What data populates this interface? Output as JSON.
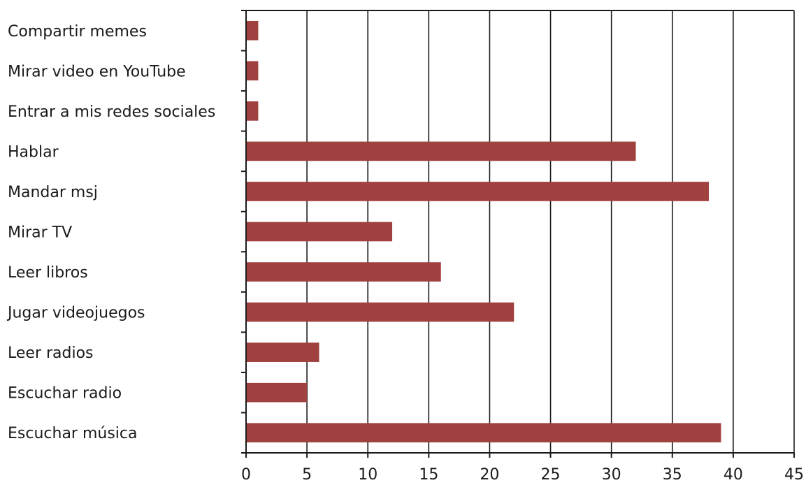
{
  "chart_data": {
    "type": "bar",
    "orientation": "horizontal",
    "categories": [
      "Compartir memes",
      "Mirar video en YouTube",
      "Entrar a mis redes sociales",
      "Hablar",
      "Mandar msj",
      "Mirar TV",
      "Leer libros",
      "Jugar videojuegos",
      "Leer radios",
      "Escuchar radio",
      "Escuchar música"
    ],
    "values": [
      1,
      1,
      1,
      32,
      38,
      12,
      16,
      22,
      6,
      5,
      39
    ],
    "xlim": [
      0,
      45
    ],
    "xticks": [
      "0",
      "5",
      "10",
      "15",
      "20",
      "25",
      "30",
      "35",
      "40",
      "45"
    ],
    "grid": "vertical",
    "bar_color": "#A0403F",
    "title": "",
    "xlabel": "",
    "ylabel": ""
  }
}
